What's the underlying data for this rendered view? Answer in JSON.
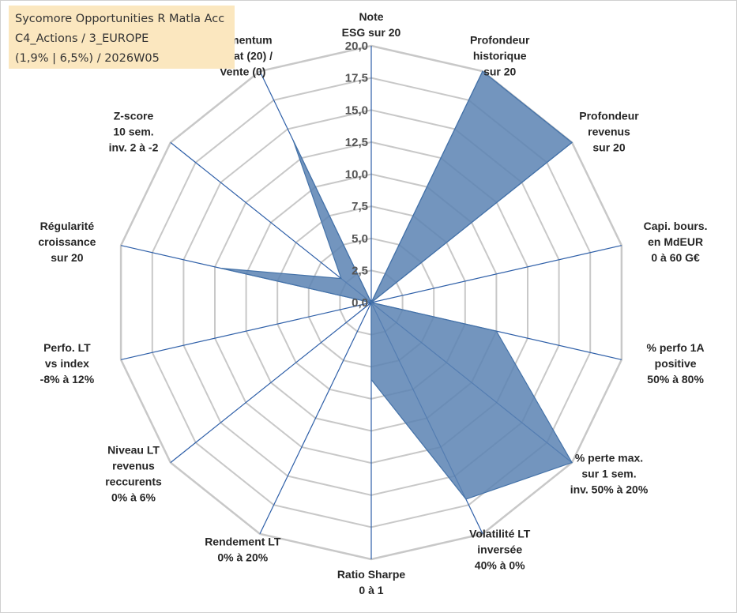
{
  "title": {
    "line1": "Sycomore Opportunities R Matla Acc",
    "line2": "C4_Actions / 3_EUROPE",
    "line3": "(1,9% | 6,5%) / 2026W05"
  },
  "colors": {
    "area_fill": "#5b83b3",
    "area_stroke": "#4472a8",
    "axis": "#2e5fa8",
    "grid": "#c8c8c8",
    "title_bg": "#fbe7bf"
  },
  "chart_data": {
    "type": "radar",
    "scale": {
      "min": 0,
      "max": 20,
      "step": 2.5
    },
    "tick_labels": [
      "0,0",
      "2,5",
      "5,0",
      "7,5",
      "10,0",
      "12,5",
      "15,0",
      "17,5",
      "20,0"
    ],
    "axes": [
      {
        "lines": [
          "Note",
          "ESG sur 20"
        ]
      },
      {
        "lines": [
          "Profondeur",
          "historique",
          "sur 20"
        ]
      },
      {
        "lines": [
          "Profondeur",
          "revenus",
          "sur 20"
        ]
      },
      {
        "lines": [
          "Capi. bours.",
          "en MdEUR",
          "0 à 60 G€"
        ]
      },
      {
        "lines": [
          "% perfo 1A",
          "positive",
          "50% à 80%"
        ]
      },
      {
        "lines": [
          "% perte max.",
          "sur 1 sem.",
          "inv. 50% à 20%"
        ]
      },
      {
        "lines": [
          "Volatilité LT",
          "inversée",
          "40% à 0%"
        ]
      },
      {
        "lines": [
          "Ratio Sharpe",
          "0 à 1"
        ]
      },
      {
        "lines": [
          "Rendement LT",
          "0% à 20%"
        ]
      },
      {
        "lines": [
          "Niveau LT",
          "revenus",
          "reccurents",
          "0% à 6%"
        ]
      },
      {
        "lines": [
          "Perfo. LT",
          "vs index",
          "-8% à 12%"
        ]
      },
      {
        "lines": [
          "Régularité",
          "croissance",
          "sur 20"
        ]
      },
      {
        "lines": [
          "Z-score",
          "10 sem.",
          "inv. 2 à -2"
        ]
      },
      {
        "lines": [
          "Momentum",
          "Achat (20) /",
          "Vente (0)"
        ]
      }
    ],
    "series": [
      {
        "values": [
          0,
          20,
          20,
          0,
          10,
          20,
          17,
          6,
          0,
          0,
          0,
          12,
          3,
          14
        ]
      }
    ]
  }
}
